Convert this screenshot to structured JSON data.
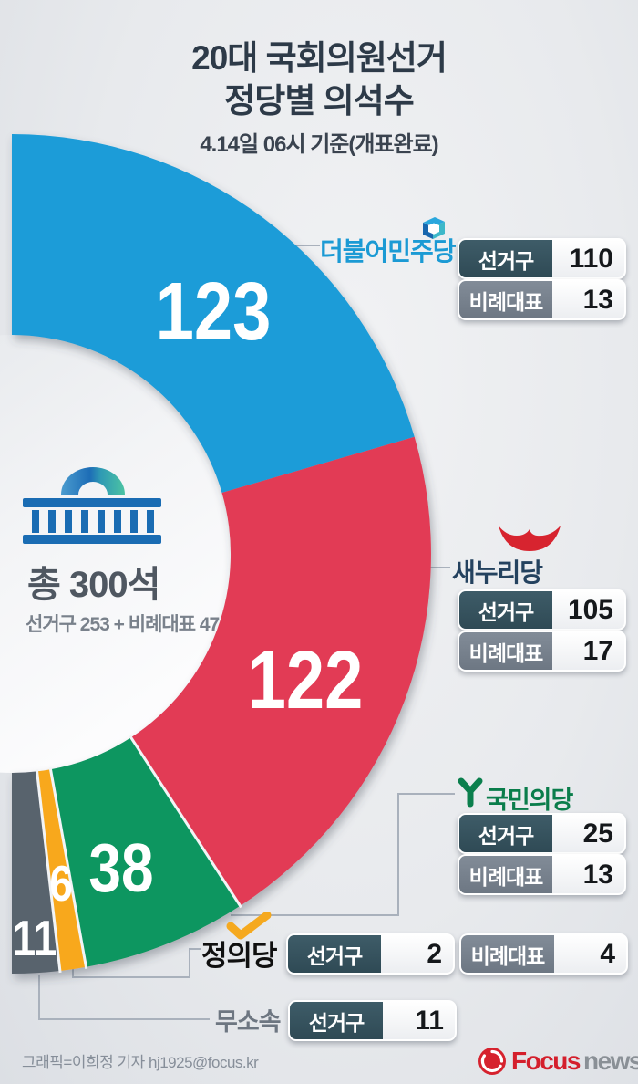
{
  "title": {
    "line1": "20대 국회의원선거",
    "line2": "정당별 의석수",
    "subtitle": "4.14일 06시 기준(개표완료)"
  },
  "center": {
    "total_label": "총 300석",
    "breakdown": "선거구 253 + 비례대표 47"
  },
  "labels": {
    "district": "선거구",
    "proportional": "비례대표"
  },
  "parties": [
    {
      "name": "더불어민주당",
      "color": "#1a9cd8",
      "text_color": "#1b9ad4",
      "total": "123",
      "district": "110",
      "proportional": "13"
    },
    {
      "name": "새누리당",
      "color": "#e23a54",
      "text_color": "#24425f",
      "total": "122",
      "district": "105",
      "proportional": "17"
    },
    {
      "name": "국민의당",
      "color": "#0c9660",
      "text_color": "#0a7d4b",
      "total": "38",
      "district": "25",
      "proportional": "13"
    },
    {
      "name": "정의당",
      "color": "#f8a81e",
      "text_color": "#101010",
      "total": "6",
      "district": "2",
      "proportional": "4"
    },
    {
      "name": "무소속",
      "color": "#59636d",
      "text_color": "#6d7681",
      "total": "11",
      "district": "11"
    }
  ],
  "chart_data": {
    "type": "pie",
    "style": "half-donut-180deg",
    "title": "20대 국회의원선거 정당별 의석수",
    "subtitle": "4.14일 06시 기준(개표완료)",
    "categories": [
      "더불어민주당",
      "새누리당",
      "국민의당",
      "정의당",
      "무소속"
    ],
    "values": [
      123,
      122,
      38,
      6,
      11
    ],
    "colors": [
      "#1a9cd8",
      "#e23a54",
      "#0c9660",
      "#f8a81e",
      "#59636d"
    ],
    "total": 300,
    "breakdown_series": [
      {
        "name": "선거구",
        "values": [
          110,
          105,
          25,
          2,
          11
        ]
      },
      {
        "name": "비례대표",
        "values": [
          13,
          17,
          13,
          4,
          0
        ]
      }
    ],
    "total_breakdown": {
      "선거구": 253,
      "비례대표": 47
    }
  },
  "credit": "그래픽=이희정 기자 hj1925@focus.kr",
  "logo": {
    "focus": "Focus",
    "news": "news"
  }
}
